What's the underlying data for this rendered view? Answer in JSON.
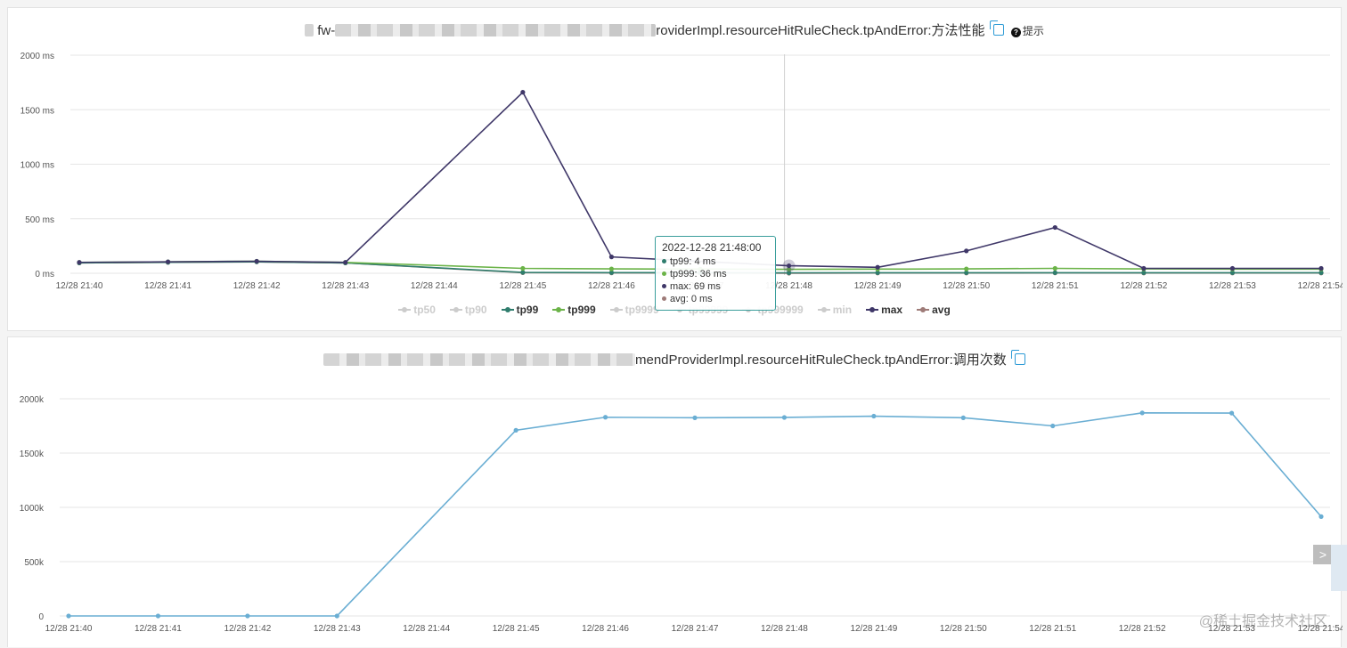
{
  "perf_panel": {
    "title_text": "roviderImpl.resourceHitRuleCheck.tpAndError:方法性能",
    "title_prefix": "fw-",
    "hint_label": "提示",
    "legend": [
      {
        "name": "tp50",
        "color": "#cccccc",
        "active": false
      },
      {
        "name": "tp90",
        "color": "#cccccc",
        "active": false
      },
      {
        "name": "tp99",
        "color": "#2f7d6d",
        "active": true
      },
      {
        "name": "tp999",
        "color": "#6bb348",
        "active": true
      },
      {
        "name": "tp9999",
        "color": "#cccccc",
        "active": false
      },
      {
        "name": "tp99999",
        "color": "#cccccc",
        "active": false
      },
      {
        "name": "tp999999",
        "color": "#cccccc",
        "active": false
      },
      {
        "name": "min",
        "color": "#cccccc",
        "active": false
      },
      {
        "name": "max",
        "color": "#3f3768",
        "active": true
      },
      {
        "name": "avg",
        "color": "#9e7b78",
        "active": true
      }
    ],
    "tooltip": {
      "header": "2022-12-28 21:48:00",
      "rows": [
        {
          "text": "tp99: 4 ms",
          "color": "#2f7d6d"
        },
        {
          "text": "tp999: 36 ms",
          "color": "#6bb348"
        },
        {
          "text": "max: 69 ms",
          "color": "#3f3768"
        },
        {
          "text": "avg: 0 ms",
          "color": "#9e7b78"
        }
      ]
    }
  },
  "calls_panel": {
    "title_text": "mendProviderImpl.resourceHitRuleCheck.tpAndError:调用次数"
  },
  "watermark": "@稀土掘金技术社区",
  "chart_data": [
    {
      "type": "line",
      "categories": [
        "12/28 21:40",
        "12/28 21:41",
        "12/28 21:42",
        "12/28 21:43",
        "12/28 21:44",
        "12/28 21:45",
        "12/28 21:46",
        "12/28 21:47",
        "12/28 21:48",
        "12/28 21:49",
        "12/28 21:50",
        "12/28 21:51",
        "12/28 21:52",
        "12/28 21:53",
        "12/28 21:54"
      ],
      "y_ticks": [
        "0 ms",
        "500 ms",
        "1000 ms",
        "1500 ms",
        "2000 ms"
      ],
      "ylim": [
        0,
        2000
      ],
      "grid": true,
      "legend_position": "bottom",
      "series": [
        {
          "name": "tp99",
          "color": "#2f7d6d",
          "values": [
            95,
            100,
            105,
            95,
            null,
            8,
            6,
            5,
            4,
            5,
            5,
            5,
            5,
            5,
            5
          ]
        },
        {
          "name": "tp999",
          "color": "#6bb348",
          "values": [
            100,
            105,
            110,
            100,
            null,
            45,
            40,
            38,
            36,
            38,
            40,
            45,
            40,
            38,
            38
          ]
        },
        {
          "name": "max",
          "color": "#3f3768",
          "values": [
            100,
            105,
            110,
            100,
            null,
            1660,
            150,
            null,
            69,
            55,
            205,
            420,
            45,
            45,
            45
          ]
        },
        {
          "name": "avg",
          "color": "#9e7b78",
          "values": [
            95,
            100,
            105,
            95,
            null,
            5,
            3,
            2,
            0,
            2,
            2,
            3,
            2,
            2,
            2
          ]
        }
      ]
    },
    {
      "type": "line",
      "categories": [
        "12/28 21:40",
        "12/28 21:41",
        "12/28 21:42",
        "12/28 21:43",
        "12/28 21:44",
        "12/28 21:45",
        "12/28 21:46",
        "12/28 21:47",
        "12/28 21:48",
        "12/28 21:49",
        "12/28 21:50",
        "12/28 21:51",
        "12/28 21:52",
        "12/28 21:53",
        "12/28 21:54"
      ],
      "y_ticks": [
        "0",
        "500k",
        "1000k",
        "1500k",
        "2000k"
      ],
      "ylim": [
        0,
        2000000
      ],
      "grid": true,
      "series": [
        {
          "color": "#6aaed3",
          "values": [
            0,
            0,
            0,
            0,
            null,
            1710000,
            1830000,
            1825000,
            1828000,
            1840000,
            1825000,
            1750000,
            1870000,
            1868000,
            915000
          ]
        }
      ]
    }
  ]
}
